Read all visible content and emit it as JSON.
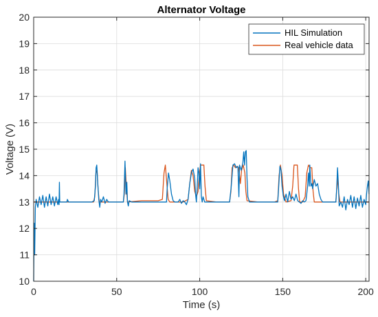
{
  "chart_data": {
    "type": "line",
    "title": "Alternator Voltage",
    "xlabel": "Time (s)",
    "ylabel": "Voltage (V)",
    "xlim": [
      0,
      202
    ],
    "ylim": [
      10,
      20
    ],
    "x_ticks": [
      0,
      50,
      100,
      150,
      200
    ],
    "y_ticks": [
      10,
      11,
      12,
      13,
      14,
      15,
      16,
      17,
      18,
      19,
      20
    ],
    "grid": true,
    "legend_position": "top-right",
    "series": [
      {
        "name": "HIL Simulation",
        "color": "#0072BD",
        "points": [
          [
            0,
            10.0
          ],
          [
            0.3,
            12.2
          ],
          [
            0.6,
            11.0
          ],
          [
            1.0,
            12.8
          ],
          [
            1.5,
            13.1
          ],
          [
            2.5,
            12.8
          ],
          [
            3.5,
            13.2
          ],
          [
            4.5,
            12.9
          ],
          [
            5.5,
            13.25
          ],
          [
            6.5,
            12.8
          ],
          [
            7.5,
            13.2
          ],
          [
            8.5,
            12.85
          ],
          [
            9.5,
            13.3
          ],
          [
            10.5,
            12.9
          ],
          [
            11.5,
            13.2
          ],
          [
            12.5,
            12.85
          ],
          [
            13.5,
            13.2
          ],
          [
            14.5,
            12.9
          ],
          [
            15,
            13.1
          ],
          [
            15.3,
            12.9
          ],
          [
            15.5,
            13.75
          ],
          [
            15.7,
            13.0
          ],
          [
            20,
            13.0
          ],
          [
            20.3,
            13.1
          ],
          [
            21,
            13.0
          ],
          [
            25,
            13.0
          ],
          [
            30,
            13.0
          ],
          [
            35,
            13.0
          ],
          [
            36.5,
            13.05
          ],
          [
            37.2,
            13.6
          ],
          [
            37.6,
            14.3
          ],
          [
            38.0,
            14.4
          ],
          [
            38.6,
            13.7
          ],
          [
            39.2,
            13.1
          ],
          [
            39.8,
            12.8
          ],
          [
            40.3,
            13.1
          ],
          [
            41,
            13.0
          ],
          [
            42,
            13.2
          ],
          [
            43,
            12.95
          ],
          [
            44,
            13.1
          ],
          [
            45,
            13.0
          ],
          [
            50,
            13.0
          ],
          [
            54,
            13.0
          ],
          [
            54.4,
            13.3
          ],
          [
            55.0,
            14.55
          ],
          [
            55.6,
            13.3
          ],
          [
            56.1,
            13.75
          ],
          [
            56.5,
            13.0
          ],
          [
            57,
            12.85
          ],
          [
            57.5,
            13.05
          ],
          [
            59,
            13.0
          ],
          [
            65,
            13.0
          ],
          [
            70,
            13.0
          ],
          [
            75,
            13.0
          ],
          [
            80,
            13.0
          ],
          [
            80.4,
            13.5
          ],
          [
            81.2,
            14.1
          ],
          [
            82,
            13.8
          ],
          [
            83,
            13.3
          ],
          [
            84,
            13.05
          ],
          [
            85,
            13.0
          ],
          [
            87,
            13.0
          ],
          [
            88,
            13.1
          ],
          [
            89,
            12.95
          ],
          [
            90,
            13.05
          ],
          [
            91,
            13.0
          ],
          [
            92,
            12.9
          ],
          [
            93,
            13.1
          ],
          [
            94,
            13.7
          ],
          [
            95,
            14.1
          ],
          [
            96,
            14.25
          ],
          [
            97,
            13.9
          ],
          [
            97.5,
            13.3
          ],
          [
            98,
            13.0
          ],
          [
            98.5,
            13.6
          ],
          [
            99,
            14.3
          ],
          [
            99.5,
            14.1
          ],
          [
            100,
            13.5
          ],
          [
            100.5,
            14.45
          ],
          [
            101,
            13.2
          ],
          [
            101.5,
            13.0
          ],
          [
            102,
            13.2
          ],
          [
            103,
            13.0
          ],
          [
            110,
            13.0
          ],
          [
            115,
            13.0
          ],
          [
            118,
            13.0
          ],
          [
            119,
            13.6
          ],
          [
            120,
            14.4
          ],
          [
            121,
            14.45
          ],
          [
            122,
            14.3
          ],
          [
            123,
            14.35
          ],
          [
            123.6,
            13.2
          ],
          [
            124,
            14.4
          ],
          [
            125,
            14.2
          ],
          [
            126,
            14.5
          ],
          [
            126.5,
            14.9
          ],
          [
            127,
            14.4
          ],
          [
            127.5,
            14.9
          ],
          [
            128,
            14.95
          ],
          [
            128.5,
            13.9
          ],
          [
            129,
            13.2
          ],
          [
            130,
            13.0
          ],
          [
            135,
            13.0
          ],
          [
            140,
            13.0
          ],
          [
            145,
            13.0
          ],
          [
            147,
            13.0
          ],
          [
            147.5,
            13.5
          ],
          [
            148.3,
            14.35
          ],
          [
            149,
            14.2
          ],
          [
            149.6,
            13.6
          ],
          [
            150.3,
            13.25
          ],
          [
            151,
            13.05
          ],
          [
            152,
            13.3
          ],
          [
            153,
            13.0
          ],
          [
            154,
            13.4
          ],
          [
            155,
            13.1
          ],
          [
            156,
            13.2
          ],
          [
            157,
            13.05
          ],
          [
            158,
            13.3
          ],
          [
            159,
            13.05
          ],
          [
            160,
            13.0
          ],
          [
            161,
            12.95
          ],
          [
            162,
            13.05
          ],
          [
            163,
            13.0
          ],
          [
            164,
            13.05
          ],
          [
            165,
            13.6
          ],
          [
            165.5,
            14.1
          ],
          [
            166,
            13.6
          ],
          [
            166.3,
            14.4
          ],
          [
            167,
            13.6
          ],
          [
            167.6,
            13.7
          ],
          [
            168,
            13.5
          ],
          [
            169,
            13.85
          ],
          [
            170,
            13.6
          ],
          [
            171,
            13.7
          ],
          [
            172,
            13.3
          ],
          [
            173,
            13.1
          ],
          [
            174,
            13.0
          ],
          [
            180,
            13.0
          ],
          [
            182,
            13.0
          ],
          [
            182.5,
            13.5
          ],
          [
            183,
            14.3
          ],
          [
            183.5,
            13.7
          ],
          [
            184,
            12.85
          ],
          [
            185,
            13.0
          ],
          [
            186,
            12.8
          ],
          [
            187,
            13.2
          ],
          [
            188,
            12.7
          ],
          [
            189,
            13.1
          ],
          [
            190,
            12.9
          ],
          [
            191,
            13.25
          ],
          [
            192,
            12.8
          ],
          [
            193,
            13.2
          ],
          [
            194,
            12.75
          ],
          [
            195,
            13.15
          ],
          [
            196,
            12.85
          ],
          [
            197,
            13.25
          ],
          [
            198,
            12.8
          ],
          [
            199,
            13.1
          ],
          [
            200,
            12.9
          ],
          [
            200.5,
            13.3
          ],
          [
            201,
            13.6
          ],
          [
            201.5,
            13.8
          ],
          [
            202,
            13.3
          ]
        ]
      },
      {
        "name": "Real vehicle data",
        "color": "#D95319",
        "points": [
          [
            0,
            13.0
          ],
          [
            15,
            13.0
          ],
          [
            30,
            13.0
          ],
          [
            36,
            13.0
          ],
          [
            36.8,
            13.2
          ],
          [
            37.5,
            14.1
          ],
          [
            38.2,
            14.2
          ],
          [
            38.8,
            13.5
          ],
          [
            39.5,
            13.0
          ],
          [
            45,
            13.0
          ],
          [
            54,
            13.0
          ],
          [
            54.6,
            13.3
          ],
          [
            55.2,
            14.3
          ],
          [
            55.8,
            13.6
          ],
          [
            56.5,
            13.0
          ],
          [
            65,
            13.05
          ],
          [
            75,
            13.05
          ],
          [
            77.5,
            13.1
          ],
          [
            78.5,
            14.1
          ],
          [
            79.3,
            14.4
          ],
          [
            80.2,
            13.7
          ],
          [
            81,
            13.1
          ],
          [
            82,
            13.0
          ],
          [
            90,
            13.0
          ],
          [
            93,
            13.1
          ],
          [
            94,
            13.7
          ],
          [
            95,
            14.2
          ],
          [
            96,
            14.0
          ],
          [
            97,
            13.4
          ],
          [
            98,
            13.2
          ],
          [
            99,
            13.4
          ],
          [
            99.8,
            14.1
          ],
          [
            100.5,
            14.4
          ],
          [
            101.5,
            14.4
          ],
          [
            102.5,
            14.4
          ],
          [
            103.2,
            13.6
          ],
          [
            104,
            13.05
          ],
          [
            110,
            13.0
          ],
          [
            118,
            13.0
          ],
          [
            118.8,
            13.4
          ],
          [
            119.5,
            14.3
          ],
          [
            120.5,
            14.4
          ],
          [
            121.5,
            14.3
          ],
          [
            122.5,
            14.35
          ],
          [
            123.5,
            14.3
          ],
          [
            124.5,
            13.7
          ],
          [
            125.2,
            14.2
          ],
          [
            126.2,
            14.4
          ],
          [
            127.2,
            14.1
          ],
          [
            127.8,
            13.4
          ],
          [
            128.5,
            13.05
          ],
          [
            135,
            13.0
          ],
          [
            145,
            13.0
          ],
          [
            147,
            13.05
          ],
          [
            147.8,
            14.0
          ],
          [
            148.6,
            14.4
          ],
          [
            149.6,
            14.0
          ],
          [
            150.5,
            13.3
          ],
          [
            152,
            13.0
          ],
          [
            155,
            13.05
          ],
          [
            156,
            13.6
          ],
          [
            156.8,
            14.4
          ],
          [
            157.8,
            14.4
          ],
          [
            158.8,
            14.4
          ],
          [
            159.5,
            13.5
          ],
          [
            160.2,
            13.0
          ],
          [
            162,
            13.0
          ],
          [
            163.5,
            13.2
          ],
          [
            164.5,
            14.1
          ],
          [
            165.5,
            14.4
          ],
          [
            166.5,
            14.3
          ],
          [
            167.5,
            14.3
          ],
          [
            168.3,
            13.4
          ],
          [
            169,
            13.0
          ],
          [
            175,
            13.0
          ],
          [
            182,
            13.0
          ],
          [
            183,
            13.9
          ],
          [
            183.8,
            13.3
          ],
          [
            184.5,
            13.0
          ],
          [
            190,
            13.0
          ],
          [
            202,
            13.0
          ]
        ]
      }
    ]
  }
}
